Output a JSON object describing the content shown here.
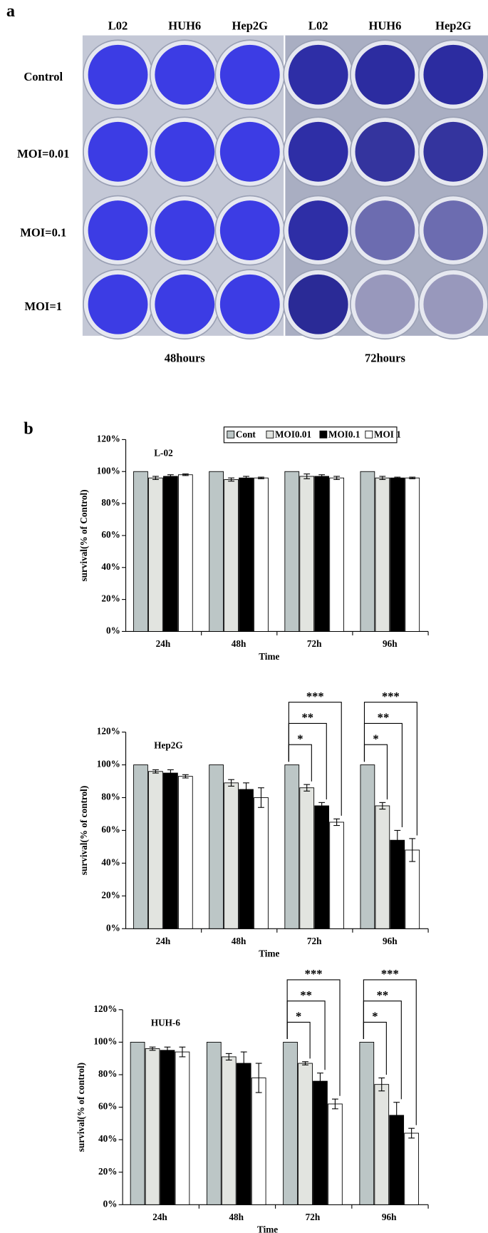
{
  "panel_a": {
    "label": "a",
    "columns": [
      "L02",
      "HUH6",
      "Hep2G",
      "L02",
      "HUH6",
      "Hep2G"
    ],
    "rows": [
      "Control",
      "MOI=0.01",
      "MOI=0.1",
      "MOI=1"
    ],
    "times": [
      "48hours",
      "72hours"
    ]
  },
  "panel_b_label": "b",
  "chart_data": [
    {
      "type": "bar",
      "title": "L-02",
      "y_label": "survival(% of Control)",
      "x_label": "Time",
      "categories": [
        "24h",
        "48h",
        "72h",
        "96h"
      ],
      "series": [
        {
          "name": "Cont",
          "color": "#bcc6c6",
          "values": [
            100,
            100,
            100,
            100
          ]
        },
        {
          "name": "MOI0.01",
          "color": "#e2e4e0",
          "values": [
            96,
            95,
            97,
            96
          ],
          "errors": [
            1,
            1,
            1.5,
            1
          ]
        },
        {
          "name": "MOI0.1",
          "color": "#000000",
          "values": [
            97,
            96,
            97,
            96
          ],
          "errors": [
            1,
            1,
            1,
            0.5
          ]
        },
        {
          "name": "MOI 1",
          "color": "#ffffff",
          "values": [
            98,
            96,
            96,
            96
          ],
          "errors": [
            0.5,
            0.5,
            1,
            0.5
          ]
        }
      ],
      "ylim": [
        0,
        120
      ],
      "yticks": [
        {
          "value": 0,
          "label": "0%"
        },
        {
          "value": 20,
          "label": "20%"
        },
        {
          "value": 40,
          "label": "40%"
        },
        {
          "value": 60,
          "label": "60%"
        },
        {
          "value": 80,
          "label": "80%"
        },
        {
          "value": 100,
          "label": "100%"
        },
        {
          "value": 120,
          "label": "120%"
        }
      ],
      "legend": "top"
    },
    {
      "type": "bar",
      "title": "Hep2G",
      "y_label": "survival(% of control)",
      "x_label": "Time",
      "categories": [
        "24h",
        "48h",
        "72h",
        "96h"
      ],
      "series": [
        {
          "name": "Cont",
          "color": "#bcc6c6",
          "values": [
            100,
            100,
            100,
            100
          ]
        },
        {
          "name": "MOI0.01",
          "color": "#e2e4e0",
          "values": [
            96,
            89,
            86,
            75
          ],
          "errors": [
            1,
            2,
            2,
            2
          ]
        },
        {
          "name": "MOI0.1",
          "color": "#000000",
          "values": [
            95,
            85,
            75,
            54
          ],
          "errors": [
            2,
            4,
            2,
            6
          ]
        },
        {
          "name": "MOI 1",
          "color": "#ffffff",
          "values": [
            93,
            80,
            65,
            48
          ],
          "errors": [
            1,
            6,
            2,
            7
          ]
        }
      ],
      "ylim": [
        0,
        120
      ],
      "yticks": [
        {
          "value": 0,
          "label": "0%"
        },
        {
          "value": 20,
          "label": "20%"
        },
        {
          "value": 40,
          "label": "40%"
        },
        {
          "value": 60,
          "label": "60%"
        },
        {
          "value": 80,
          "label": "80%"
        },
        {
          "value": 100,
          "label": "100%"
        },
        {
          "value": 120,
          "label": "120%"
        }
      ],
      "annotations": [
        "*",
        "**",
        "***",
        "*",
        "**",
        "***"
      ]
    },
    {
      "type": "bar",
      "title": "HUH-6",
      "y_label": "survival(% of control)",
      "x_label": "Time",
      "categories": [
        "24h",
        "48h",
        "72h",
        "96h"
      ],
      "series": [
        {
          "name": "Cont",
          "color": "#bcc6c6",
          "values": [
            100,
            100,
            100,
            100
          ]
        },
        {
          "name": "MOI0.01",
          "color": "#e2e4e0",
          "values": [
            96,
            91,
            87,
            74
          ],
          "errors": [
            1,
            2,
            1,
            4
          ]
        },
        {
          "name": "MOI0.1",
          "color": "#000000",
          "values": [
            95,
            87,
            76,
            55
          ],
          "errors": [
            2,
            7,
            5,
            8
          ]
        },
        {
          "name": "MOI 1",
          "color": "#ffffff",
          "values": [
            94,
            78,
            62,
            44
          ],
          "errors": [
            3,
            9,
            3,
            3
          ]
        }
      ],
      "ylim": [
        0,
        120
      ],
      "yticks": [
        {
          "value": 0,
          "label": "0%"
        },
        {
          "value": 20,
          "label": "20%"
        },
        {
          "value": 40,
          "label": "40%"
        },
        {
          "value": 60,
          "label": "60%"
        },
        {
          "value": 80,
          "label": "80%"
        },
        {
          "value": 100,
          "label": "100%"
        },
        {
          "value": 120,
          "label": "120%"
        }
      ],
      "annotations": [
        "*",
        "**",
        "***",
        "*",
        "**",
        "***"
      ]
    }
  ]
}
